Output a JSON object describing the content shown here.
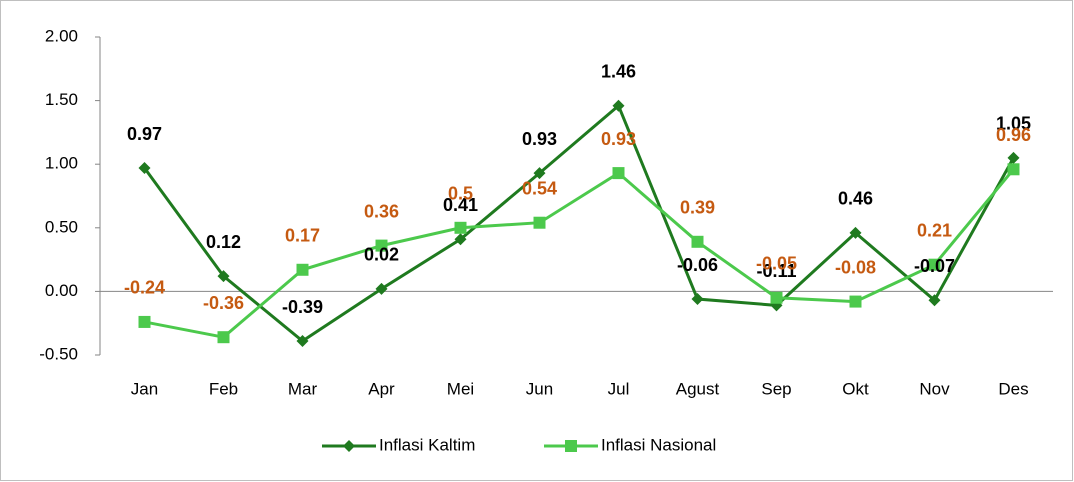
{
  "chart_data": {
    "type": "line",
    "categories": [
      "Jan",
      "Feb",
      "Mar",
      "Apr",
      "Mei",
      "Jun",
      "Jul",
      "Agust",
      "Sep",
      "Okt",
      "Nov",
      "Des"
    ],
    "series": [
      {
        "name": "Inflasi Kaltim",
        "color": "#1f7a1f",
        "label_color": "#000000",
        "marker": "diamond",
        "values": [
          0.97,
          0.12,
          -0.39,
          0.02,
          0.41,
          0.93,
          1.46,
          -0.06,
          -0.11,
          0.46,
          -0.07,
          1.05
        ]
      },
      {
        "name": "Inflasi Nasional",
        "color": "#4cc94c",
        "label_color": "#c55a11",
        "marker": "square",
        "values": [
          -0.24,
          -0.36,
          0.17,
          0.36,
          0.5,
          0.54,
          0.93,
          0.39,
          -0.05,
          -0.08,
          0.21,
          0.96
        ]
      }
    ],
    "ylim": [
      -0.5,
      2.0
    ],
    "yticks": [
      {
        "value": -0.5,
        "label": "-0.50"
      },
      {
        "value": 0,
        "label": "0.00"
      },
      {
        "value": 0.5,
        "label": "0.50"
      },
      {
        "value": 1,
        "label": "1.00"
      },
      {
        "value": 1.5,
        "label": "1.50"
      },
      {
        "value": 2,
        "label": "2.00"
      }
    ],
    "legend": "bottom"
  }
}
